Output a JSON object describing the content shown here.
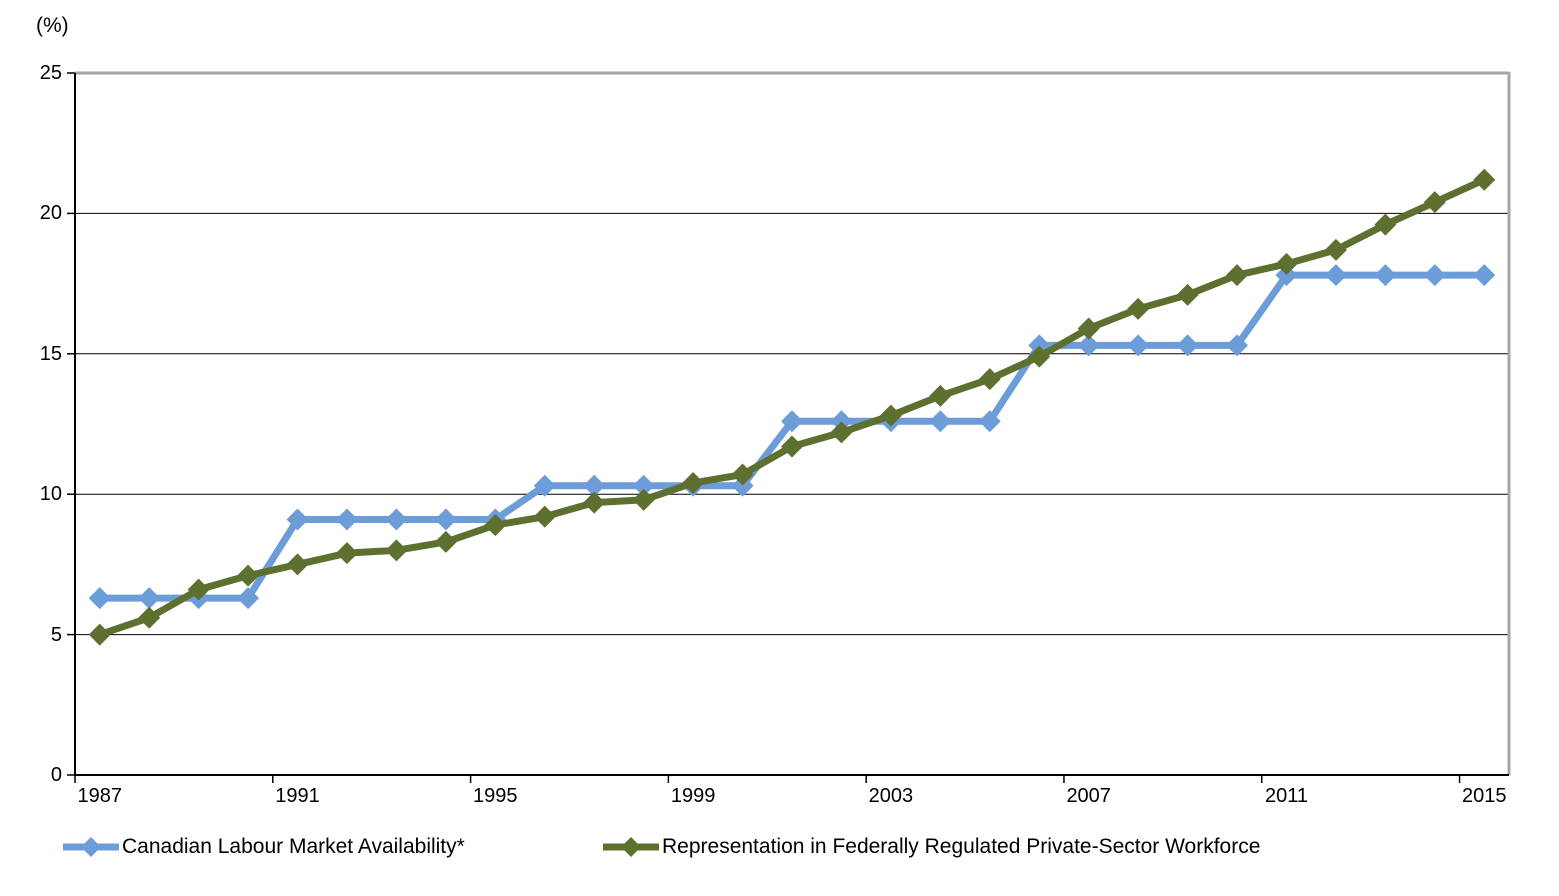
{
  "chart_data": {
    "type": "line",
    "title": "",
    "ylabel": "(%)",
    "ylim": [
      0,
      25
    ],
    "yticks": [
      0,
      5,
      10,
      15,
      20,
      25
    ],
    "x": [
      1987,
      1988,
      1989,
      1990,
      1991,
      1992,
      1993,
      1994,
      1995,
      1996,
      1997,
      1998,
      1999,
      2000,
      2001,
      2002,
      2003,
      2004,
      2005,
      2006,
      2007,
      2008,
      2009,
      2010,
      2011,
      2012,
      2013,
      2014,
      2015
    ],
    "xtick_labels": [
      1987,
      1991,
      1995,
      1999,
      2003,
      2007,
      2011,
      2015
    ],
    "grid": true,
    "legend_position": "bottom",
    "series": [
      {
        "name": "Canadian Labour Market Availability*",
        "color": "#6D9DD9",
        "marker": "diamond",
        "values": [
          6.3,
          6.3,
          6.3,
          6.3,
          9.1,
          9.1,
          9.1,
          9.1,
          9.1,
          10.3,
          10.3,
          10.3,
          10.3,
          10.3,
          12.6,
          12.6,
          12.6,
          12.6,
          12.6,
          15.3,
          15.3,
          15.3,
          15.3,
          15.3,
          17.8,
          17.8,
          17.8,
          17.8,
          17.8
        ]
      },
      {
        "name": "Representation in Federally Regulated Private-Sector Workforce",
        "color": "#5E7030",
        "marker": "diamond",
        "values": [
          5.0,
          5.6,
          6.6,
          7.1,
          7.5,
          7.9,
          8.0,
          8.3,
          8.9,
          9.2,
          9.7,
          9.8,
          10.4,
          10.7,
          11.7,
          12.2,
          12.8,
          13.5,
          14.1,
          14.9,
          15.9,
          16.6,
          17.1,
          17.8,
          18.2,
          18.7,
          19.6,
          20.4,
          21.2
        ]
      }
    ]
  },
  "colors": {
    "gridline": "#000000",
    "plot_border": "#A6A6A6",
    "axis": "#000000",
    "text": "#000000"
  }
}
